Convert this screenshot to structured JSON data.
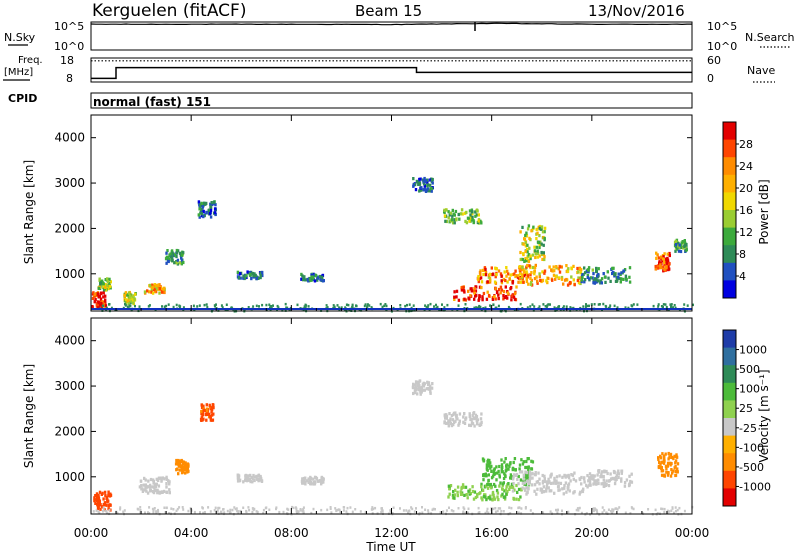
{
  "header": {
    "station": "Kerguelen (fitACF)",
    "beam": "Beam 15",
    "date": "13/Nov/2016"
  },
  "top_panels": {
    "nsky_label": "N.Sky",
    "nsearch_label": "N.Search",
    "nsky_ticks": [
      "10^5",
      "10^0"
    ],
    "nsearch_ticks": [
      "10^5",
      "10^0"
    ],
    "freq_label_1": "Freq.",
    "freq_label_2": "[MHz]",
    "freq_ticks": [
      "18",
      "8"
    ],
    "nave_label": "Nave",
    "nave_ticks": [
      "60",
      "0"
    ],
    "cpid_label": "CPID",
    "cpid_text": "normal (fast) 151"
  },
  "power_colorbar": {
    "label": "Power [dB]",
    "ticks": [
      "28",
      "24",
      "20",
      "16",
      "12",
      "8",
      "4"
    ],
    "colors": [
      "#e30000",
      "#ff4500",
      "#ff8c00",
      "#ffb000",
      "#f0d800",
      "#9acd32",
      "#3caa3c",
      "#2e8b57",
      "#2050c0",
      "#0000e0"
    ]
  },
  "velocity_colorbar": {
    "label": "Velocity [m s⁻¹]",
    "ticks": [
      "1000",
      "500",
      "100",
      "25",
      "-25",
      "-100",
      "-500",
      "-1000"
    ],
    "colors": [
      "#1e3ca8",
      "#2f6f9f",
      "#2e8b57",
      "#4cbb3a",
      "#8fd14f",
      "#c8c8c8",
      "#ffb000",
      "#ff8c00",
      "#ff4500",
      "#e30000"
    ]
  },
  "chart_data": [
    {
      "type": "line",
      "title": "N.Sky / N.Search",
      "ylim_log10": [
        0,
        5
      ],
      "x": [
        "00:00",
        "04:00",
        "08:00",
        "12:00",
        "16:00",
        "20:00",
        "00:00"
      ],
      "series": [
        {
          "name": "N.Sky",
          "values_log10": [
            4.6,
            4.6,
            4.6,
            4.55,
            4.75,
            4.6,
            4.6
          ]
        }
      ]
    },
    {
      "type": "line",
      "title": "Freq. [MHz] / Nave",
      "ylim": [
        8,
        18
      ],
      "x_hours": [
        0,
        1,
        1,
        13,
        13,
        24
      ],
      "series": [
        {
          "name": "Freq.",
          "values": [
            9.5,
            9.5,
            14,
            14,
            12,
            12
          ]
        },
        {
          "name": "Nave",
          "values": [
            53,
            53,
            53,
            53,
            53,
            53
          ]
        }
      ]
    },
    {
      "type": "heatmap",
      "title": "Power",
      "xlabel": "",
      "ylabel": "Slant Range [km]",
      "xlim_hours": [
        0,
        24
      ],
      "ylim": [
        180,
        4500
      ],
      "yticks": [
        1000,
        2000,
        3000,
        4000
      ],
      "colorbar_label": "Power [dB]",
      "colorbar_range": [
        0,
        30
      ],
      "patches": [
        {
          "t": 0.3,
          "r": 450,
          "v": 28,
          "dt": 0.6,
          "dr": 350
        },
        {
          "t": 0.5,
          "r": 800,
          "v": 14,
          "dt": 0.5,
          "dr": 250
        },
        {
          "t": 1.5,
          "r": 500,
          "v": 14,
          "dt": 0.5,
          "dr": 250
        },
        {
          "t": 2.5,
          "r": 700,
          "v": 20,
          "dt": 0.8,
          "dr": 200
        },
        {
          "t": 3.3,
          "r": 1400,
          "v": 8,
          "dt": 0.7,
          "dr": 300
        },
        {
          "t": 4.6,
          "r": 2450,
          "v": 6,
          "dt": 0.7,
          "dr": 350
        },
        {
          "t": 6.3,
          "r": 1000,
          "v": 6,
          "dt": 1.0,
          "dr": 150
        },
        {
          "t": 8.8,
          "r": 950,
          "v": 6,
          "dt": 0.9,
          "dr": 150
        },
        {
          "t": 13.2,
          "r": 3000,
          "v": 6,
          "dt": 0.8,
          "dr": 300
        },
        {
          "t": 14.8,
          "r": 2300,
          "v": 12,
          "dt": 1.5,
          "dr": 300
        },
        {
          "t": 15.7,
          "r": 600,
          "v": 28,
          "dt": 2.5,
          "dr": 300
        },
        {
          "t": 16.4,
          "r": 1000,
          "v": 22,
          "dt": 2.0,
          "dr": 350
        },
        {
          "t": 17.6,
          "r": 1700,
          "v": 14,
          "dt": 1.0,
          "dr": 800
        },
        {
          "t": 18.3,
          "r": 1000,
          "v": 20,
          "dt": 2.5,
          "dr": 450
        },
        {
          "t": 20.5,
          "r": 1000,
          "v": 8,
          "dt": 2.0,
          "dr": 350
        },
        {
          "t": 22.8,
          "r": 1300,
          "v": 26,
          "dt": 0.6,
          "dr": 400
        },
        {
          "t": 23.5,
          "r": 1650,
          "v": 10,
          "dt": 0.5,
          "dr": 250
        }
      ]
    },
    {
      "type": "heatmap",
      "title": "Velocity",
      "xlabel": "Time UT",
      "ylabel": "Slant Range [km]",
      "xlim_hours": [
        0,
        24
      ],
      "ylim": [
        180,
        4500
      ],
      "yticks": [
        1000,
        2000,
        3000,
        4000
      ],
      "xticks": [
        "00:00",
        "04:00",
        "08:00",
        "12:00",
        "16:00",
        "20:00",
        "00:00"
      ],
      "colorbar_label": "Velocity [m s⁻¹]",
      "patches": [
        {
          "t": 0.4,
          "r": 500,
          "v": -400,
          "dt": 0.7,
          "dr": 400
        },
        {
          "t": 2.5,
          "r": 850,
          "v": 0,
          "dt": 1.2,
          "dr": 350
        },
        {
          "t": 3.6,
          "r": 1250,
          "v": -150,
          "dt": 0.5,
          "dr": 300
        },
        {
          "t": 4.6,
          "r": 2450,
          "v": -300,
          "dt": 0.5,
          "dr": 350
        },
        {
          "t": 6.3,
          "r": 1000,
          "v": 0,
          "dt": 1.0,
          "dr": 150
        },
        {
          "t": 8.8,
          "r": 950,
          "v": 0,
          "dt": 0.9,
          "dr": 150
        },
        {
          "t": 13.2,
          "r": 3000,
          "v": 0,
          "dt": 0.8,
          "dr": 300
        },
        {
          "t": 14.8,
          "r": 2300,
          "v": 0,
          "dt": 1.5,
          "dr": 300
        },
        {
          "t": 15.7,
          "r": 700,
          "v": 90,
          "dt": 3.0,
          "dr": 350
        },
        {
          "t": 16.6,
          "r": 1150,
          "v": 200,
          "dt": 2.0,
          "dr": 600
        },
        {
          "t": 18.3,
          "r": 900,
          "v": 0,
          "dt": 3.0,
          "dr": 500
        },
        {
          "t": 20.7,
          "r": 1000,
          "v": 0,
          "dt": 1.8,
          "dr": 350
        },
        {
          "t": 23.0,
          "r": 1300,
          "v": -200,
          "dt": 0.8,
          "dr": 500
        }
      ]
    }
  ]
}
